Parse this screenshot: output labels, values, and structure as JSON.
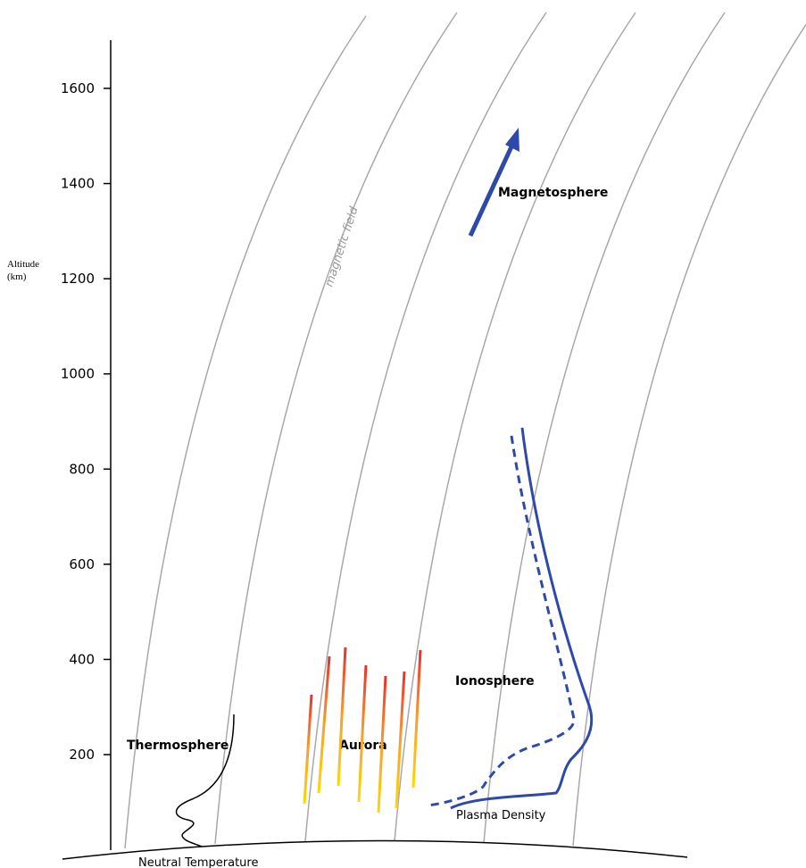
{
  "axis": {
    "label_line1": "Altitude",
    "label_line2": "(km)",
    "ticks": [
      200,
      400,
      600,
      800,
      1000,
      1200,
      1400,
      1600
    ]
  },
  "labels": {
    "magnetic_field": "magnetic field",
    "magnetosphere": "Magnetosphere",
    "ionosphere": "Ionosphere",
    "thermosphere": "Thermosphere",
    "aurora": "Aurora",
    "plasma_density": "Plasma Density",
    "neutral_temperature": "Neutral Temperature"
  }
}
